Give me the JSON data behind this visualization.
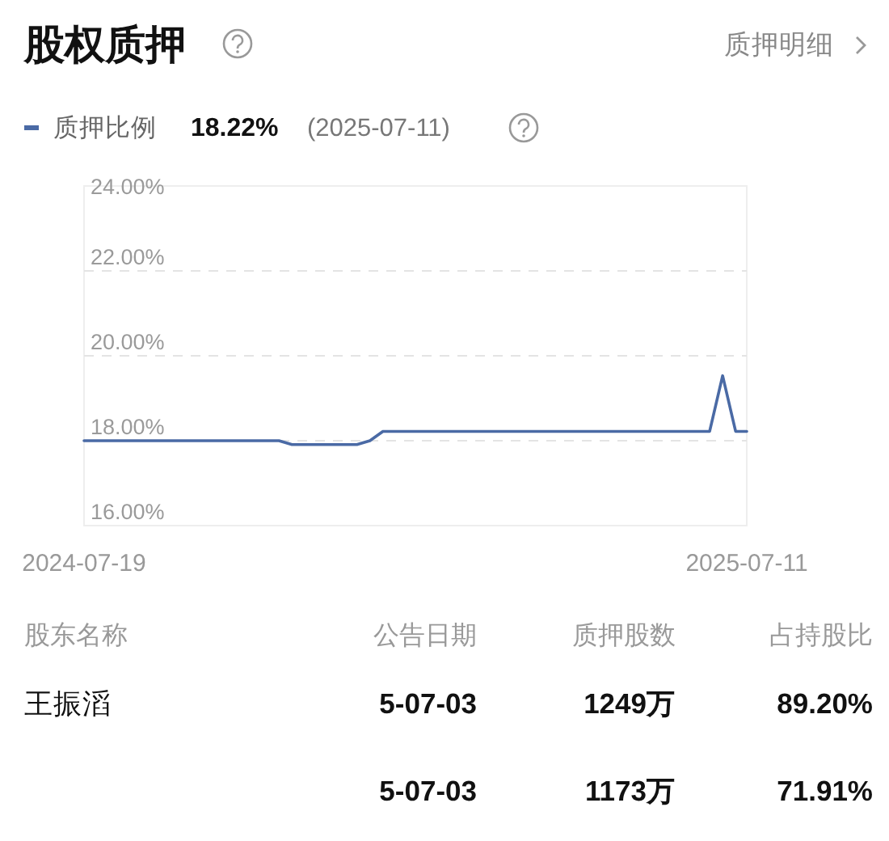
{
  "chart_data": {
    "type": "line",
    "title": "股权质押",
    "x": [
      "2024-07-19",
      "2024-11-01",
      "2024-11-08",
      "2024-12-13",
      "2024-12-20",
      "2024-12-27",
      "2025-06-21",
      "2025-06-28",
      "2025-07-05",
      "2025-07-11"
    ],
    "series": [
      {
        "name": "质押比例",
        "color": "#4a6aa5",
        "values": [
          18.0,
          18.0,
          17.91,
          17.91,
          18.0,
          18.22,
          18.22,
          19.53,
          18.22,
          18.22
        ]
      }
    ],
    "xlim": [
      "2024-07-19",
      "2025-07-11"
    ],
    "xticks": [
      "2024-07-19",
      "2025-07-11"
    ],
    "ylim": [
      16,
      24
    ],
    "yticks": [
      {
        "value": 16,
        "label": "16.00%"
      },
      {
        "value": 18,
        "label": "18.00%"
      },
      {
        "value": 20,
        "label": "20.00%"
      },
      {
        "value": 22,
        "label": "22.00%"
      },
      {
        "value": 24,
        "label": "24.00%"
      }
    ],
    "grid": "y",
    "legend": "top left",
    "marker": "none",
    "line_style": "solid",
    "annotations": [
      "质押明细",
      "18.22%",
      "(2025-07-11)",
      "股东名称",
      "公告日期",
      "质押股数",
      "占持股比",
      "王振滔",
      "5-07-03",
      "1249万",
      "89.20%",
      "5-07-03",
      "1173万",
      "71.91%"
    ]
  }
}
